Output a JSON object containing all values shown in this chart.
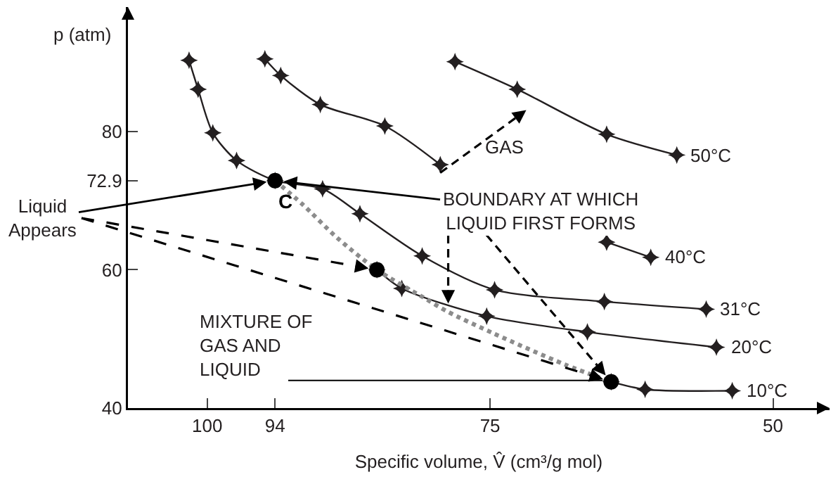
{
  "chart_data": {
    "type": "line",
    "xlabel": "Specific volume, V̂ (cm³/g mol)",
    "ylabel": "p (atm)",
    "xlim": [
      107,
      45
    ],
    "ylim": [
      40,
      98
    ],
    "xticks": [
      100,
      94,
      75,
      50
    ],
    "yticks": [
      40,
      60,
      72.9,
      80
    ],
    "grid": false,
    "legend": false,
    "marker": "star",
    "line_style": "solid",
    "series": [
      {
        "name": "50°C",
        "color": "#231f20",
        "x": [
          78.1,
          72.6,
          64.7,
          58.5
        ],
        "values": [
          90.1,
          86.1,
          79.6,
          76.6
        ]
      },
      {
        "name": "40°C",
        "color": "#231f20",
        "x": [
          94.9,
          93.5,
          90.0,
          84.3,
          79.4,
          null,
          64.7,
          60.8
        ],
        "values": [
          90.5,
          88.1,
          83.9,
          80.8,
          75.2,
          null,
          64.0,
          61.8
        ]
      },
      {
        "name": "31°C",
        "color": "#231f20",
        "x": [
          101.6,
          100.8,
          99.5,
          97.4,
          94,
          89.8,
          86.5,
          81.0,
          74.6,
          64.9,
          55.9
        ],
        "values": [
          90.3,
          86.1,
          79.8,
          75.8,
          72.9,
          71.7,
          68.1,
          62.0,
          57.1,
          55.4,
          54.3
        ]
      },
      {
        "name": "20°C",
        "color": "#231f20",
        "x": [
          85,
          82.8,
          75.3,
          66.4,
          55.0
        ],
        "values": [
          60,
          57.3,
          53.3,
          51.0,
          48.8
        ]
      },
      {
        "name": "10°C",
        "color": "#231f20",
        "x": [
          64.3,
          61.3,
          53.6
        ],
        "values": [
          43.8,
          42.7,
          42.5
        ]
      },
      {
        "type": "line",
        "marker": "none",
        "line_style": "dotted",
        "color": "#8c8c8c",
        "x": [
          94,
          91.6,
          88.5,
          85,
          81.0,
          78.7,
          74.7,
          68.4,
          64.3
        ],
        "values": [
          72.9,
          69.5,
          64.6,
          60,
          56.1,
          53.9,
          50.8,
          46.3,
          43.8
        ]
      },
      {
        "type": "scatter",
        "marker": "circle",
        "color": "#000000",
        "x": [
          94,
          85,
          64.3
        ],
        "values": [
          72.9,
          60,
          43.8
        ]
      }
    ],
    "annotations": [
      {
        "text": "C",
        "x": 94,
        "y": 72.9
      },
      {
        "text": "Liquid\nAppears",
        "x": 94,
        "y": 72.9
      },
      {
        "text": "BOUNDARY AT WHICH\nLIQUID FIRST FORMS",
        "x": 94,
        "y": 72.9
      },
      {
        "text": "GAS",
        "x": 71.2,
        "y": 83.8
      },
      {
        "text": "MIXTURE OF\nGAS AND\nLIQUID",
        "x": 64.3,
        "y": 43.8
      }
    ]
  }
}
